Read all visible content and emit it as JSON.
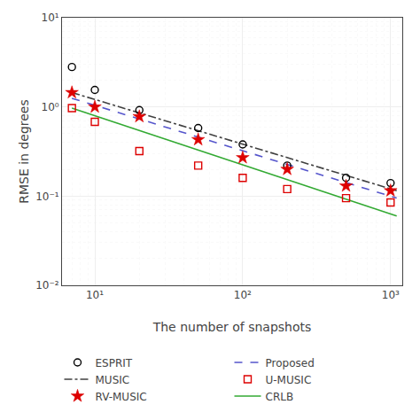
{
  "chart_data": {
    "type": "line",
    "xlabel": "The number of snapshots",
    "ylabel": "RMSE in degrees",
    "log": true,
    "grid": true,
    "legend": "bottom",
    "x": [
      7,
      10,
      20,
      50,
      100,
      200,
      500,
      1000
    ],
    "series": [
      {
        "name": "MUSIC",
        "type": "line",
        "line_style": "dashdot",
        "color": "#404040",
        "x": [
          7,
          1100
        ],
        "values": [
          1.45,
          0.115
        ]
      },
      {
        "name": "Proposed",
        "type": "line",
        "line_style": "dash",
        "color": "#5555cc",
        "x": [
          7,
          1100
        ],
        "values": [
          1.25,
          0.095
        ]
      },
      {
        "name": "CRLB",
        "type": "line",
        "line_style": "solid",
        "color": "#33aa33",
        "x": [
          7,
          1100
        ],
        "values": [
          0.97,
          0.06
        ]
      },
      {
        "name": "ESPRIT",
        "type": "scatter",
        "marker": "circle-open",
        "color": "#000000",
        "values": [
          2.8,
          1.55,
          0.92,
          0.58,
          0.38,
          0.22,
          0.16,
          0.14
        ]
      },
      {
        "name": "RV-MUSIC",
        "type": "scatter",
        "marker": "star",
        "color": "#dd0000",
        "values": [
          1.45,
          1.0,
          0.78,
          0.43,
          0.27,
          0.2,
          0.13,
          0.115
        ]
      },
      {
        "name": "U-MUSIC",
        "type": "scatter",
        "marker": "square-open",
        "color": "#dd0000",
        "values": [
          0.97,
          0.68,
          0.32,
          0.22,
          0.16,
          0.12,
          0.095,
          0.085
        ]
      }
    ],
    "xlim": [
      6,
      1200
    ],
    "ylim": [
      0.01,
      10
    ],
    "xticks": [
      {
        "value": 10,
        "label": "10¹"
      },
      {
        "value": 100,
        "label": "10²"
      },
      {
        "value": 1000,
        "label": "10³"
      }
    ],
    "yticks": [
      {
        "value": 0.01,
        "label": "10⁻²"
      },
      {
        "value": 0.1,
        "label": "10⁻¹"
      },
      {
        "value": 1,
        "label": "10⁰"
      },
      {
        "value": 10,
        "label": "10¹"
      }
    ]
  }
}
